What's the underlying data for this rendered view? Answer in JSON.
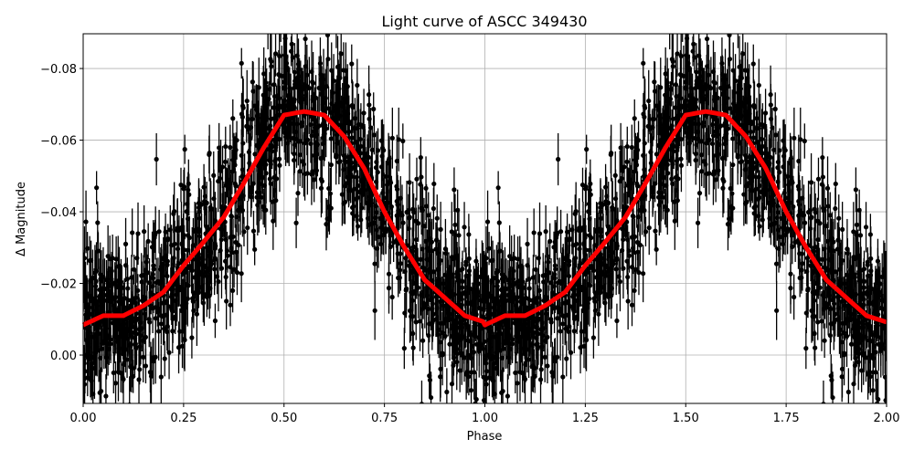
{
  "chart_data": {
    "type": "scatter",
    "title": "Light curve of ASCC 349430",
    "xlabel": "Phase",
    "ylabel": "Δ Magnitude",
    "xlim": [
      0,
      2
    ],
    "ylim": [
      0.0135,
      -0.0897
    ],
    "y_inverted": true,
    "grid": true,
    "x_ticks": [
      "0.00",
      "0.25",
      "0.50",
      "0.75",
      "1.00",
      "1.25",
      "1.50",
      "1.75",
      "2.00"
    ],
    "x_tick_values": [
      0,
      0.25,
      0.5,
      0.75,
      1,
      1.25,
      1.5,
      1.75,
      2
    ],
    "y_ticks": [
      "−0.08",
      "−0.06",
      "−0.04",
      "−0.02",
      "0.00"
    ],
    "y_tick_values": [
      -0.08,
      -0.06,
      -0.04,
      -0.02,
      0
    ],
    "series": [
      {
        "kind": "errorbar-scatter",
        "color": "#000000",
        "description_of_values": "phase-folded photometry repeated over two cycles"
      },
      {
        "kind": "line",
        "color": "#ff0000",
        "x": [
          0,
          0.05,
          0.1,
          0.15,
          0.2,
          0.25,
          0.3,
          0.35,
          0.4,
          0.45,
          0.5,
          0.55,
          0.6,
          0.65,
          0.7,
          0.75,
          0.8,
          0.85,
          0.9,
          0.95,
          1.0,
          1.05,
          1.1,
          1.15,
          1.2,
          1.25,
          1.3,
          1.35,
          1.4,
          1.45,
          1.5,
          1.55,
          1.6,
          1.65,
          1.7,
          1.75,
          1.8,
          1.85,
          1.9,
          1.95,
          2.0
        ],
        "y": [
          -0.0084,
          -0.011,
          -0.011,
          -0.0138,
          -0.0176,
          -0.025,
          -0.0316,
          -0.0385,
          -0.048,
          -0.058,
          -0.067,
          -0.068,
          -0.067,
          -0.061,
          -0.052,
          -0.04,
          -0.03,
          -0.021,
          -0.016,
          -0.011,
          -0.0092,
          -0.011,
          -0.011,
          -0.0138,
          -0.0176,
          -0.025,
          -0.0316,
          -0.0385,
          -0.048,
          -0.058,
          -0.067,
          -0.068,
          -0.067,
          -0.061,
          -0.052,
          -0.04,
          -0.03,
          -0.021,
          -0.016,
          -0.011,
          -0.0084
        ]
      }
    ]
  }
}
